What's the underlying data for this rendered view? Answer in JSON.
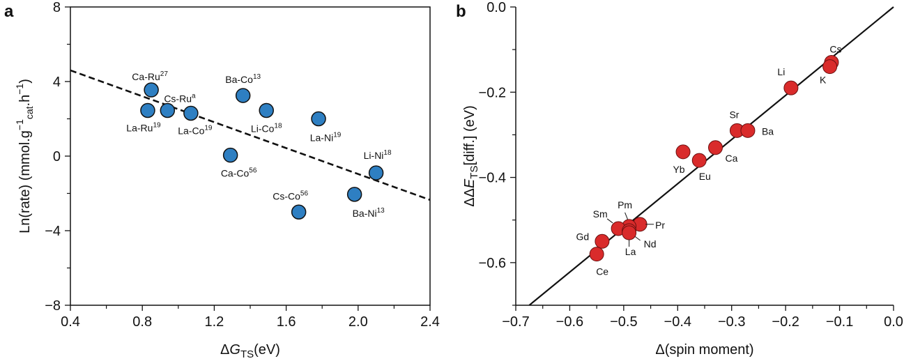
{
  "panels": [
    {
      "letter": "a"
    },
    {
      "letter": "b"
    }
  ],
  "chart_data": [
    {
      "type": "scatter",
      "panel": "a",
      "xlabel": {
        "delta": "Δ",
        "var": "G",
        "sub": "TS",
        "unit": "(eV)"
      },
      "ylabel": {
        "prefix": "Ln(rate) (mmol.g",
        "sup1": "−1",
        "sub": "cat",
        "mid": ".h",
        "sup2": "−1",
        "suffix": ")"
      },
      "xlim": [
        0.4,
        2.4
      ],
      "ylim": [
        -8,
        8
      ],
      "xticks": [
        "0.4",
        "0.8",
        "1.2",
        "1.6",
        "2.0",
        "2.4"
      ],
      "yticks": [
        "8",
        "4",
        "0",
        "−4",
        "−8"
      ],
      "grid": false,
      "marker_color": "#2e7fc2",
      "points": [
        {
          "x": 0.85,
          "y": 3.55,
          "label": "Ca-Ru",
          "ref": "27"
        },
        {
          "x": 0.83,
          "y": 2.45,
          "label": "La-Ru",
          "ref": "19"
        },
        {
          "x": 0.94,
          "y": 2.45,
          "label": "Cs-Ru",
          "ref": "a"
        },
        {
          "x": 1.07,
          "y": 2.3,
          "label": "La-Co",
          "ref": "19"
        },
        {
          "x": 1.29,
          "y": 0.05,
          "label": "Ca-Co",
          "ref": "56"
        },
        {
          "x": 1.36,
          "y": 3.25,
          "label": "Ba-Co",
          "ref": "13"
        },
        {
          "x": 1.49,
          "y": 2.45,
          "label": "Li-Co",
          "ref": "18"
        },
        {
          "x": 1.78,
          "y": 2.0,
          "label": "La-Ni",
          "ref": "19"
        },
        {
          "x": 1.67,
          "y": -3.0,
          "label": "Cs-Co",
          "ref": "56"
        },
        {
          "x": 1.98,
          "y": -2.05,
          "label": "Ba-Ni",
          "ref": "13"
        },
        {
          "x": 2.1,
          "y": -0.9,
          "label": "Li-Ni",
          "ref": "18"
        }
      ],
      "fit_line": {
        "style": "dashed",
        "x": [
          0.4,
          2.4
        ],
        "y": [
          4.6,
          -2.35
        ]
      }
    },
    {
      "type": "scatter",
      "panel": "b",
      "xlabel": {
        "text": "Δ(spin moment)"
      },
      "ylabel": {
        "prefix": "ΔΔ",
        "var": "E",
        "sub": "TS",
        "suffix": "[diff.] (eV)"
      },
      "xlim": [
        -0.7,
        0.0
      ],
      "ylim": [
        -0.7,
        0.0
      ],
      "xticks": [
        "−0.7",
        "−0.6",
        "−0.5",
        "−0.4",
        "−0.3",
        "−0.2",
        "−0.1",
        "0.0"
      ],
      "yticks": [
        "0.0",
        "−0.2",
        "−0.4",
        "−0.6"
      ],
      "grid": false,
      "marker_color": "#d92b2b",
      "points": [
        {
          "x": -0.115,
          "y": -0.13,
          "label": "Cs"
        },
        {
          "x": -0.118,
          "y": -0.14,
          "label": "K"
        },
        {
          "x": -0.19,
          "y": -0.19,
          "label": "Li"
        },
        {
          "x": -0.29,
          "y": -0.29,
          "label": "Sr"
        },
        {
          "x": -0.27,
          "y": -0.29,
          "label": "Ba"
        },
        {
          "x": -0.33,
          "y": -0.33,
          "label": "Ca"
        },
        {
          "x": -0.39,
          "y": -0.34,
          "label": "Yb"
        },
        {
          "x": -0.36,
          "y": -0.36,
          "label": "Eu"
        },
        {
          "x": -0.47,
          "y": -0.51,
          "label": "Pr"
        },
        {
          "x": -0.49,
          "y": -0.515,
          "label": "Pm"
        },
        {
          "x": -0.51,
          "y": -0.52,
          "label": "Sm"
        },
        {
          "x": -0.49,
          "y": -0.525,
          "label": "Nd"
        },
        {
          "x": -0.49,
          "y": -0.53,
          "label": "La"
        },
        {
          "x": -0.54,
          "y": -0.55,
          "label": "Gd"
        },
        {
          "x": -0.55,
          "y": -0.58,
          "label": "Ce"
        }
      ],
      "fit_line": {
        "style": "solid",
        "x": [
          -0.675,
          0.0
        ],
        "y": [
          -0.7,
          0.0
        ]
      }
    }
  ]
}
